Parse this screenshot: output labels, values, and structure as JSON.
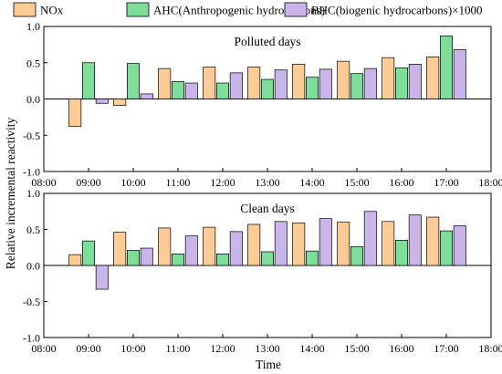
{
  "legend": [
    {
      "label": "NOx",
      "color": "#FDCB95"
    },
    {
      "label": "AHC(Anthropogenic hydrocarbons)",
      "color": "#7FDD9A"
    },
    {
      "label": "BHC(biogenic hydrocarbons)×1000",
      "color": "#C9B5EA"
    }
  ],
  "xlabel": "Time",
  "ylabel": "Relative incremental reactivity",
  "chart_data": [
    {
      "type": "bar",
      "title": "Polluted days",
      "xlabel": "",
      "ylabel": "Relative incremental reactivity",
      "xlim": [
        "08:00",
        "18:00"
      ],
      "x_ticks": [
        "08:00",
        "09:00",
        "10:00",
        "11:00",
        "12:00",
        "13:00",
        "14:00",
        "15:00",
        "16:00",
        "17:00",
        "18:00"
      ],
      "ylim": [
        -1.0,
        1.0
      ],
      "y_ticks": [
        "-1.0",
        "-0.5",
        "0.0",
        "0.5",
        "1.0"
      ],
      "categories": [
        "09:00",
        "10:00",
        "11:00",
        "12:00",
        "13:00",
        "14:00",
        "15:00",
        "16:00",
        "17:00"
      ],
      "series": [
        {
          "name": "NOx",
          "values": [
            -0.38,
            -0.09,
            0.42,
            0.44,
            0.44,
            0.48,
            0.52,
            0.57,
            0.58
          ]
        },
        {
          "name": "AHC(Anthropogenic hydrocarbons)",
          "values": [
            0.5,
            0.49,
            0.24,
            0.22,
            0.27,
            0.3,
            0.35,
            0.43,
            0.87
          ]
        },
        {
          "name": "BHC(biogenic hydrocarbons)×1000",
          "values": [
            -0.06,
            0.07,
            0.22,
            0.36,
            0.4,
            0.41,
            0.42,
            0.48,
            0.68
          ]
        }
      ]
    },
    {
      "type": "bar",
      "title": "Clean days",
      "xlabel": "Time",
      "ylabel": "Relative incremental reactivity",
      "xlim": [
        "08:00",
        "18:00"
      ],
      "x_ticks": [
        "08:00",
        "09:00",
        "10:00",
        "11:00",
        "12:00",
        "13:00",
        "14:00",
        "15:00",
        "16:00",
        "17:00",
        "18:00"
      ],
      "ylim": [
        -1.0,
        1.0
      ],
      "y_ticks": [
        "-1.0",
        "-0.5",
        "0.0",
        "0.5",
        "1.0"
      ],
      "categories": [
        "09:00",
        "10:00",
        "11:00",
        "12:00",
        "13:00",
        "14:00",
        "15:00",
        "16:00",
        "17:00"
      ],
      "series": [
        {
          "name": "NOx",
          "values": [
            0.15,
            0.46,
            0.52,
            0.53,
            0.57,
            0.59,
            0.6,
            0.61,
            0.67
          ]
        },
        {
          "name": "AHC(Anthropogenic hydrocarbons)",
          "values": [
            0.34,
            0.21,
            0.16,
            0.16,
            0.19,
            0.2,
            0.26,
            0.35,
            0.48
          ]
        },
        {
          "name": "BHC(biogenic hydrocarbons)×1000",
          "values": [
            -0.33,
            0.24,
            0.41,
            0.47,
            0.61,
            0.65,
            0.75,
            0.7,
            0.55
          ]
        }
      ]
    }
  ]
}
